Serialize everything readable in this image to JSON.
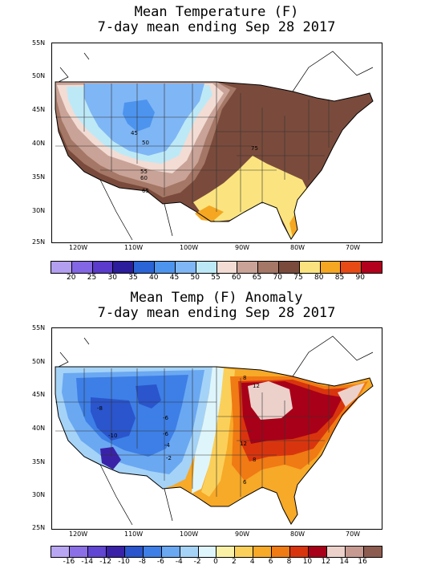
{
  "map1": {
    "title_line1": "Mean Temperature (F)",
    "title_line2": "7-day mean ending Sep 28 2017",
    "lat_labels": [
      "55N",
      "50N",
      "45N",
      "40N",
      "35N",
      "30N",
      "25N"
    ],
    "lon_labels": [
      "120W",
      "110W",
      "100W",
      "90W",
      "80W",
      "70W"
    ],
    "contour_labels": [
      "45",
      "50",
      "55",
      "60",
      "65",
      "75"
    ],
    "legend_labels": [
      "20",
      "25",
      "30",
      "35",
      "40",
      "45",
      "50",
      "55",
      "60",
      "65",
      "70",
      "75",
      "80",
      "85",
      "90"
    ],
    "legend_colors": [
      "#b39ff0",
      "#8366e3",
      "#5a3bcc",
      "#2b1d9c",
      "#2a64d6",
      "#4d94ef",
      "#7fb6f5",
      "#bde9f7",
      "#f3dcd4",
      "#c9a397",
      "#a57766",
      "#7a4b3c",
      "#fbe47f",
      "#f5a722",
      "#e84a16",
      "#b2001d"
    ]
  },
  "map2": {
    "title_line1": "Mean Temp (F) Anomaly",
    "title_line2": "7-day mean ending Sep 28 2017",
    "lat_labels": [
      "55N",
      "50N",
      "45N",
      "40N",
      "35N",
      "30N",
      "25N"
    ],
    "lon_labels": [
      "120W",
      "110W",
      "100W",
      "90W",
      "80W",
      "70W"
    ],
    "contour_labels": [
      "-8",
      "-10",
      "-6",
      "-6",
      "-4",
      "-2",
      "8",
      "12",
      "12",
      "8",
      "6"
    ],
    "legend_labels": [
      "-16",
      "-14",
      "-12",
      "-10",
      "-8",
      "-6",
      "-4",
      "-2",
      "0",
      "2",
      "4",
      "6",
      "8",
      "10",
      "12",
      "14",
      "16"
    ],
    "legend_colors": [
      "#b9a6f3",
      "#8a6fe6",
      "#6046d3",
      "#3a22a8",
      "#2a55cc",
      "#3d7fe6",
      "#6aa8f2",
      "#a5d3f7",
      "#def6fb",
      "#fbf1a6",
      "#fbd05a",
      "#f7a928",
      "#f07a14",
      "#d8350e",
      "#a80018",
      "#ecd1cb",
      "#c69a91",
      "#8d5c50"
    ]
  }
}
